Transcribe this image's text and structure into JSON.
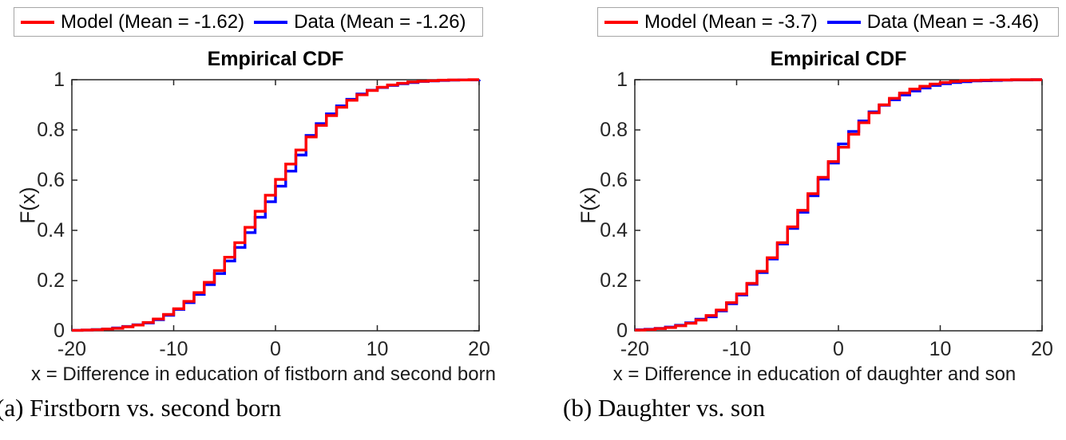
{
  "figure": {
    "background": "#ffffff"
  },
  "colors": {
    "model_line": "#ff0000",
    "data_line": "#0000ff",
    "axis": "#262626",
    "legend_border": "#a6a6a6"
  },
  "chart_data": [
    {
      "type": "line",
      "subtype": "empirical-cdf-steps",
      "title": "Empirical CDF",
      "xlabel": "x = Difference in education of fistborn and second born",
      "ylabel": "F(x)",
      "caption": "(a) Firstborn vs. second born",
      "legend_position": "above",
      "grid": false,
      "xlim": [
        -20,
        20
      ],
      "ylim": [
        0,
        1
      ],
      "xticks": [
        -20,
        -10,
        0,
        10,
        20
      ],
      "xtick_labels": [
        "-20",
        "-10",
        "0",
        "10",
        "20"
      ],
      "yticks": [
        0,
        0.2,
        0.4,
        0.6,
        0.8,
        1
      ],
      "ytick_labels": [
        "0",
        "0.2",
        "0.4",
        "0.6",
        "0.8",
        "1"
      ],
      "x": [
        -20,
        -19,
        -18,
        -17,
        -16,
        -15,
        -14,
        -13,
        -12,
        -11,
        -10,
        -9,
        -8,
        -7,
        -6,
        -5,
        -4,
        -3,
        -2,
        -1,
        0,
        1,
        2,
        3,
        4,
        5,
        6,
        7,
        8,
        9,
        10,
        11,
        12,
        13,
        14,
        15,
        16,
        17,
        18,
        19,
        20
      ],
      "series": [
        {
          "id": "model",
          "name": "Model (Mean = -1.62)",
          "mean": -1.62,
          "color": "#ff0000",
          "values": [
            0.002,
            0.003,
            0.004,
            0.007,
            0.01,
            0.016,
            0.023,
            0.033,
            0.047,
            0.065,
            0.088,
            0.117,
            0.152,
            0.193,
            0.24,
            0.293,
            0.351,
            0.412,
            0.476,
            0.54,
            0.603,
            0.664,
            0.72,
            0.772,
            0.818,
            0.857,
            0.89,
            0.918,
            0.94,
            0.957,
            0.97,
            0.979,
            0.986,
            0.991,
            0.994,
            0.996,
            0.998,
            0.999,
            0.999,
            1.0,
            1.0
          ]
        },
        {
          "id": "data",
          "name": "Data (Mean = -1.26)",
          "mean": -1.26,
          "color": "#0000ff",
          "values": [
            0.002,
            0.003,
            0.005,
            0.007,
            0.011,
            0.017,
            0.024,
            0.031,
            0.044,
            0.062,
            0.085,
            0.112,
            0.145,
            0.184,
            0.228,
            0.278,
            0.332,
            0.391,
            0.452,
            0.514,
            0.576,
            0.636,
            0.7,
            0.778,
            0.825,
            0.864,
            0.896,
            0.922,
            0.943,
            0.958,
            0.969,
            0.977,
            0.984,
            0.989,
            0.993,
            0.995,
            0.997,
            0.998,
            0.999,
            0.999,
            1.0
          ]
        }
      ]
    },
    {
      "type": "line",
      "subtype": "empirical-cdf-steps",
      "title": "Empirical CDF",
      "xlabel": "x = Difference in education of daughter and son",
      "ylabel": "F(x)",
      "caption": "(b) Daughter vs. son",
      "legend_position": "above",
      "grid": false,
      "xlim": [
        -20,
        20
      ],
      "ylim": [
        0,
        1
      ],
      "xticks": [
        -20,
        -10,
        0,
        10,
        20
      ],
      "xtick_labels": [
        "-20",
        "-10",
        "0",
        "10",
        "20"
      ],
      "yticks": [
        0,
        0.2,
        0.4,
        0.6,
        0.8,
        1
      ],
      "ytick_labels": [
        "0",
        "0.2",
        "0.4",
        "0.6",
        "0.8",
        "1"
      ],
      "x": [
        -20,
        -19,
        -18,
        -17,
        -16,
        -15,
        -14,
        -13,
        -12,
        -11,
        -10,
        -9,
        -8,
        -7,
        -6,
        -5,
        -4,
        -3,
        -2,
        -1,
        0,
        1,
        2,
        3,
        4,
        5,
        6,
        7,
        8,
        9,
        10,
        11,
        12,
        13,
        14,
        15,
        16,
        17,
        18,
        19,
        20
      ],
      "series": [
        {
          "id": "model",
          "name": "Model (Mean = -3.7)",
          "mean": -3.7,
          "color": "#ff0000",
          "values": [
            0.003,
            0.005,
            0.009,
            0.013,
            0.02,
            0.03,
            0.043,
            0.061,
            0.083,
            0.112,
            0.147,
            0.189,
            0.237,
            0.291,
            0.351,
            0.414,
            0.48,
            0.546,
            0.611,
            0.674,
            0.731,
            0.783,
            0.829,
            0.868,
            0.9,
            0.926,
            0.947,
            0.963,
            0.974,
            0.983,
            0.989,
            0.993,
            0.996,
            0.997,
            0.998,
            0.999,
            0.999,
            1.0,
            1.0,
            1.0,
            1.0
          ]
        },
        {
          "id": "data",
          "name": "Data (Mean = -3.46)",
          "mean": -3.46,
          "color": "#0000ff",
          "values": [
            0.004,
            0.006,
            0.01,
            0.015,
            0.022,
            0.032,
            0.046,
            0.056,
            0.079,
            0.108,
            0.143,
            0.185,
            0.232,
            0.286,
            0.346,
            0.408,
            0.472,
            0.538,
            0.604,
            0.668,
            0.744,
            0.794,
            0.836,
            0.872,
            0.898,
            0.92,
            0.939,
            0.955,
            0.967,
            0.977,
            0.984,
            0.989,
            0.992,
            0.995,
            0.996,
            0.997,
            0.998,
            0.999,
            0.999,
            1.0,
            1.0
          ]
        }
      ]
    }
  ]
}
